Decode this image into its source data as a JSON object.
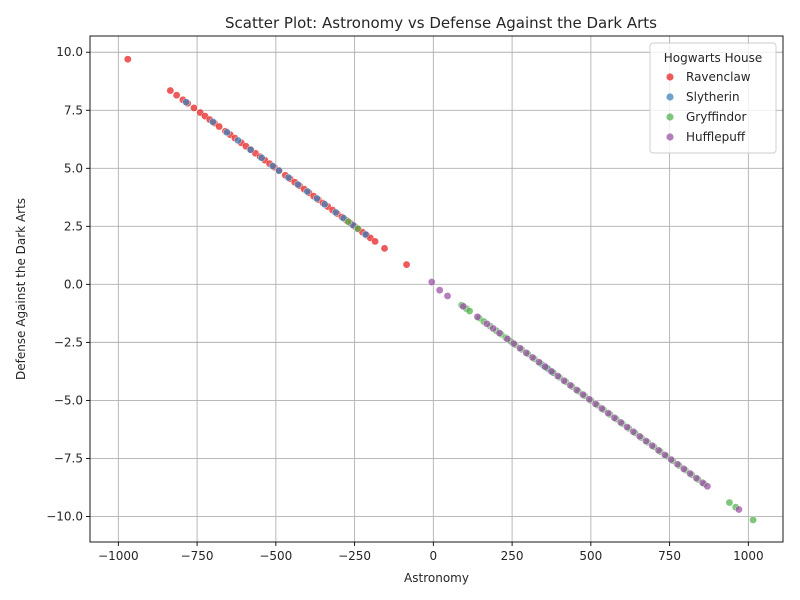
{
  "chart_data": {
    "type": "scatter",
    "title": "Scatter Plot: Astronomy vs Defense Against the Dark Arts",
    "xlabel": "Astronomy",
    "ylabel": "Defense Against the Dark Arts",
    "xlim": [
      -1090,
      1110
    ],
    "ylim": [
      -11.1,
      10.7
    ],
    "x_ticks": [
      -1000,
      -750,
      -500,
      -250,
      0,
      250,
      500,
      750,
      1000
    ],
    "x_tick_labels": [
      "−1000",
      "−750",
      "−500",
      "−250",
      "0",
      "250",
      "500",
      "750",
      "1000"
    ],
    "y_ticks": [
      -10,
      -7.5,
      -5,
      -2.5,
      0,
      2.5,
      5,
      7.5,
      10
    ],
    "y_tick_labels": [
      "−10.0",
      "−7.5",
      "−5.0",
      "−2.5",
      "0.0",
      "2.5",
      "5.0",
      "7.5",
      "10.0"
    ],
    "grid": true,
    "legend": {
      "title": "Hogwarts House",
      "placement": "top-right"
    },
    "series": [
      {
        "name": "Ravenclaw",
        "color": "#e41a1c",
        "x": [
          -970,
          -835,
          -815,
          -795,
          -780,
          -760,
          -740,
          -725,
          -710,
          -695,
          -680,
          -660,
          -645,
          -630,
          -610,
          -595,
          -580,
          -565,
          -550,
          -535,
          -520,
          -505,
          -490,
          -470,
          -455,
          -440,
          -425,
          -410,
          -395,
          -380,
          -365,
          -350,
          -335,
          -320,
          -305,
          -290,
          -275,
          -262,
          -250,
          -238,
          -225,
          -212,
          -200,
          -185,
          -155,
          -85
        ],
        "y": [
          9.7,
          8.35,
          8.15,
          7.95,
          7.8,
          7.6,
          7.4,
          7.25,
          7.1,
          6.95,
          6.8,
          6.6,
          6.45,
          6.3,
          6.1,
          5.95,
          5.8,
          5.65,
          5.5,
          5.35,
          5.2,
          5.05,
          4.9,
          4.7,
          4.55,
          4.4,
          4.25,
          4.1,
          3.95,
          3.8,
          3.65,
          3.5,
          3.35,
          3.2,
          3.05,
          2.9,
          2.75,
          2.62,
          2.5,
          2.38,
          2.25,
          2.12,
          2.0,
          1.85,
          1.55,
          0.85
        ]
      },
      {
        "name": "Slytherin",
        "color": "#377eb8",
        "x": [
          -785,
          -700,
          -655,
          -620,
          -580,
          -545,
          -510,
          -490,
          -460,
          -430,
          -400,
          -370,
          -345,
          -310,
          -285,
          -255,
          -215,
          350,
          365,
          380
        ],
        "y": [
          7.85,
          7.0,
          6.55,
          6.2,
          5.8,
          5.45,
          5.1,
          4.9,
          4.6,
          4.3,
          4.0,
          3.7,
          3.45,
          3.1,
          2.85,
          2.55,
          2.15,
          -3.5,
          -3.65,
          -3.8
        ]
      },
      {
        "name": "Gryffindor",
        "color": "#4daf4a",
        "x": [
          -270,
          -240,
          90,
          105,
          115,
          145,
          160,
          180,
          200,
          215,
          230,
          245,
          260,
          280,
          300,
          320,
          340,
          360,
          380,
          400,
          420,
          440,
          460,
          480,
          500,
          520,
          540,
          560,
          580,
          600,
          620,
          640,
          660,
          680,
          700,
          720,
          740,
          760,
          780,
          800,
          820,
          840,
          860,
          940,
          960,
          1015
        ],
        "y": [
          2.7,
          2.4,
          -0.9,
          -1.05,
          -1.15,
          -1.45,
          -1.6,
          -1.8,
          -2.0,
          -2.15,
          -2.3,
          -2.45,
          -2.6,
          -2.8,
          -3.0,
          -3.2,
          -3.4,
          -3.6,
          -3.8,
          -4.0,
          -4.2,
          -4.4,
          -4.6,
          -4.8,
          -5.0,
          -5.2,
          -5.4,
          -5.6,
          -5.8,
          -6.0,
          -6.2,
          -6.4,
          -6.6,
          -6.8,
          -7.0,
          -7.2,
          -7.4,
          -7.6,
          -7.8,
          -8.0,
          -8.2,
          -8.4,
          -8.6,
          -9.4,
          -9.6,
          -10.15
        ]
      },
      {
        "name": "Hufflepuff",
        "color": "#984ea3",
        "x": [
          -5,
          20,
          45,
          95,
          140,
          170,
          190,
          210,
          235,
          255,
          275,
          295,
          315,
          335,
          355,
          375,
          395,
          415,
          435,
          455,
          475,
          495,
          515,
          535,
          555,
          575,
          595,
          615,
          635,
          655,
          675,
          695,
          715,
          735,
          755,
          775,
          795,
          815,
          835,
          855,
          870,
          970
        ],
        "y": [
          0.1,
          -0.25,
          -0.5,
          -0.95,
          -1.4,
          -1.7,
          -1.9,
          -2.1,
          -2.35,
          -2.55,
          -2.75,
          -2.95,
          -3.15,
          -3.35,
          -3.55,
          -3.75,
          -3.95,
          -4.15,
          -4.35,
          -4.55,
          -4.75,
          -4.95,
          -5.15,
          -5.35,
          -5.55,
          -5.75,
          -5.95,
          -6.15,
          -6.35,
          -6.55,
          -6.75,
          -6.95,
          -7.15,
          -7.35,
          -7.55,
          -7.75,
          -7.95,
          -8.15,
          -8.35,
          -8.55,
          -8.7,
          -9.7
        ]
      }
    ]
  }
}
